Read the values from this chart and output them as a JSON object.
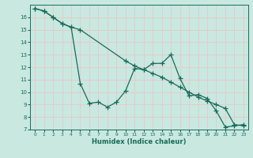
{
  "title": "",
  "xlabel": "Humidex (Indice chaleur)",
  "background_color": "#c8e8e0",
  "grid_color": "#b0d8d0",
  "line_color": "#1a6b5a",
  "xlim": [
    -0.5,
    23.5
  ],
  "ylim": [
    7,
    17
  ],
  "yticks": [
    7,
    8,
    9,
    10,
    11,
    12,
    13,
    14,
    15,
    16
  ],
  "xticks": [
    0,
    1,
    2,
    3,
    4,
    5,
    6,
    7,
    8,
    9,
    10,
    11,
    12,
    13,
    14,
    15,
    16,
    17,
    18,
    19,
    20,
    21,
    22,
    23
  ],
  "series1_x": [
    0,
    1,
    2,
    3,
    4,
    5,
    6,
    7,
    8,
    9,
    10,
    11,
    12,
    13,
    14,
    15,
    16,
    17,
    18,
    19,
    20,
    21,
    22,
    23
  ],
  "series1_y": [
    16.7,
    16.5,
    16.0,
    15.5,
    15.2,
    10.7,
    9.1,
    9.2,
    8.8,
    9.2,
    10.1,
    11.9,
    11.8,
    12.3,
    12.3,
    13.0,
    11.1,
    9.7,
    9.8,
    9.5,
    8.5,
    7.2,
    7.3,
    7.4
  ],
  "series2_x": [
    0,
    1,
    2,
    3,
    4,
    5,
    10,
    11,
    12,
    13,
    14,
    15,
    16,
    17,
    18,
    19,
    20,
    21,
    22,
    23
  ],
  "series2_y": [
    16.7,
    16.5,
    16.0,
    15.5,
    15.2,
    15.0,
    12.5,
    12.1,
    11.8,
    11.5,
    11.2,
    10.8,
    10.4,
    10.0,
    9.6,
    9.3,
    9.0,
    8.7,
    7.4,
    7.3
  ],
  "marker_size": 3,
  "line_width": 0.9
}
